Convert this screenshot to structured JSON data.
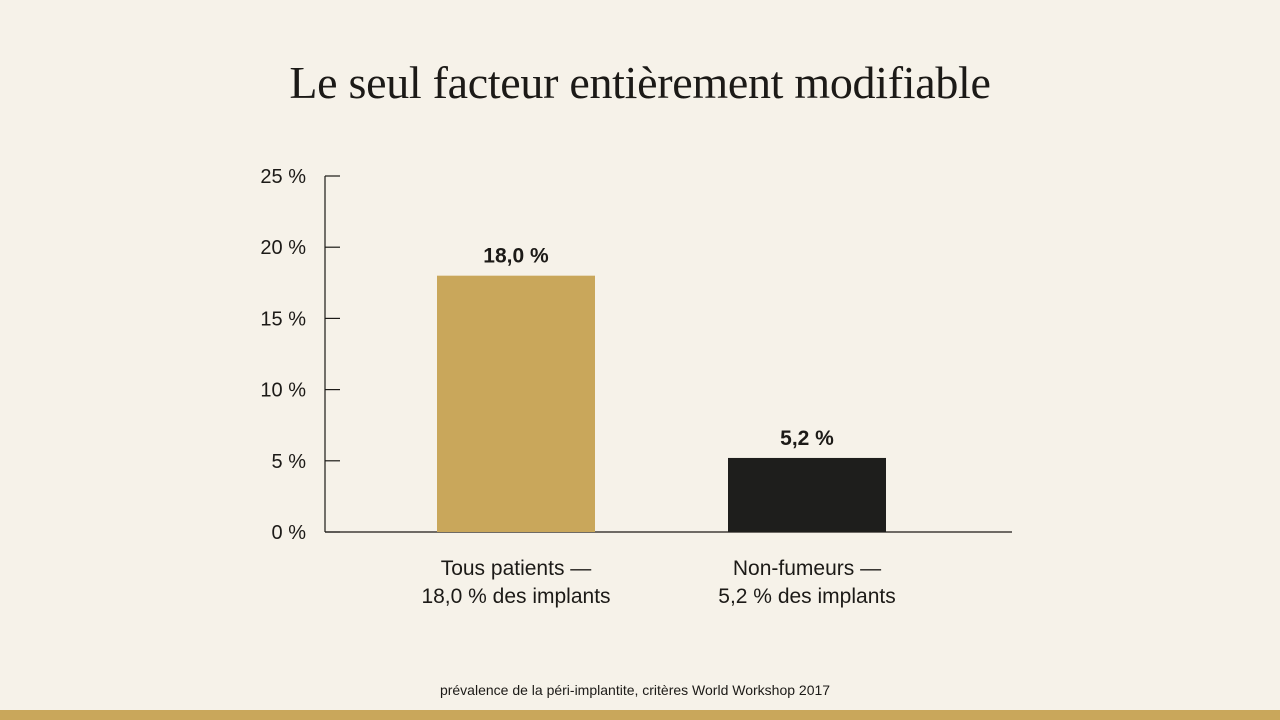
{
  "slide": {
    "title": "Le seul facteur entièrement modifiable",
    "footnote": "prévalence de la péri-implantite, critères World Workshop 2017"
  },
  "colors": {
    "background": "#f6f2e9",
    "accent_gold": "#c9a75b",
    "bar_dark": "#1e1e1c",
    "axis": "#1c1a17"
  },
  "chart_data": {
    "type": "bar",
    "title": "Le seul facteur entièrement modifiable",
    "categories": [
      {
        "line1": "Tous patients —",
        "line2": "18,0 % des implants"
      },
      {
        "line1": "Non-fumeurs —",
        "line2": "5,2 % des implants"
      }
    ],
    "values": [
      18.0,
      5.2
    ],
    "data_labels": [
      "18,0 %",
      "5,2 %"
    ],
    "bar_colors": [
      "#c9a75b",
      "#1e1e1c"
    ],
    "ylim": [
      0,
      25
    ],
    "yticks": [
      {
        "value": 0,
        "label": "0 %"
      },
      {
        "value": 5,
        "label": "5 %"
      },
      {
        "value": 10,
        "label": "10 %"
      },
      {
        "value": 15,
        "label": "15 %"
      },
      {
        "value": 20,
        "label": "20 %"
      },
      {
        "value": 25,
        "label": "25 %"
      }
    ],
    "xlabel": "",
    "ylabel": "",
    "grid": false,
    "legend": "none"
  }
}
